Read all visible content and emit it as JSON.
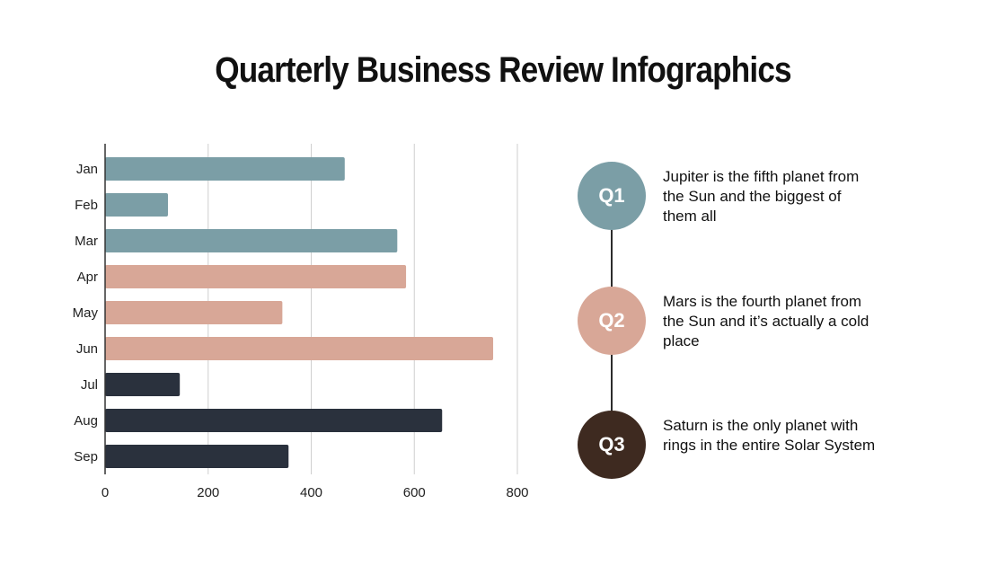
{
  "title": "Quarterly Business Review Infographics",
  "chart_data": {
    "type": "bar",
    "orientation": "horizontal",
    "categories": [
      "Jan",
      "Feb",
      "Mar",
      "Apr",
      "May",
      "Jun",
      "Jul",
      "Aug",
      "Sep"
    ],
    "values": [
      465,
      122,
      567,
      584,
      344,
      753,
      145,
      654,
      356
    ],
    "bar_colors": [
      "#7b9ea6",
      "#7b9ea6",
      "#7b9ea6",
      "#d8a797",
      "#d8a797",
      "#d8a797",
      "#2a313d",
      "#2a313d",
      "#2a313d"
    ],
    "xlim": [
      0,
      800
    ],
    "xticks": [
      "0",
      "200",
      "400",
      "600",
      "800"
    ],
    "grid": true,
    "title": "",
    "xlabel": "",
    "ylabel": ""
  },
  "timeline": [
    {
      "label": "Q1",
      "text": "Jupiter is the fifth planet from the Sun and the biggest of them all",
      "color": "#7b9ea6"
    },
    {
      "label": "Q2",
      "text": "Mars is the fourth planet from the Sun and it’s actually a cold place",
      "color": "#d8a797"
    },
    {
      "label": "Q3",
      "text": "Saturn is the only planet with rings in the entire Solar System",
      "color": "#3e2a20"
    }
  ]
}
